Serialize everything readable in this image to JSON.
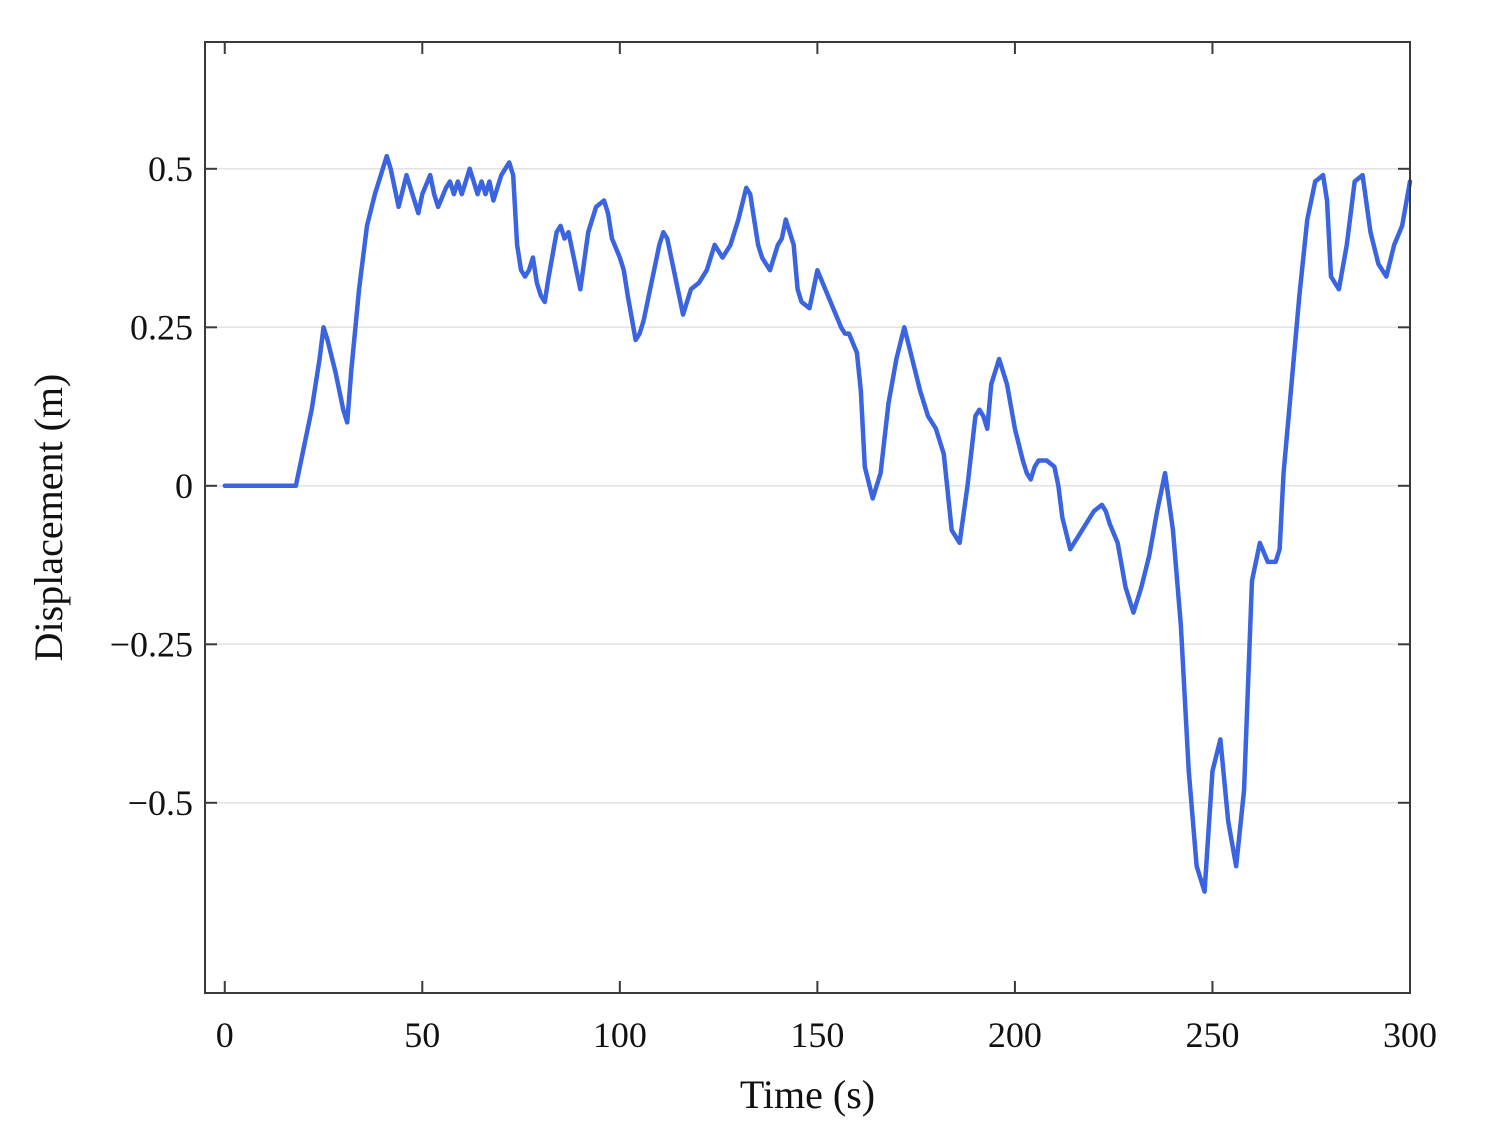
{
  "chart_data": {
    "type": "line",
    "xlabel": "Time (s)",
    "ylabel": "Displacement (m)",
    "xlim": [
      -5,
      300
    ],
    "ylim": [
      -0.8,
      0.7
    ],
    "xticks": [
      0,
      50,
      100,
      150,
      200,
      250,
      300
    ],
    "yticks": [
      -0.5,
      -0.25,
      0,
      0.25,
      0.5
    ],
    "xtick_labels": [
      "0",
      "50",
      "100",
      "150",
      "200",
      "250",
      "300"
    ],
    "ytick_labels": [
      "−0.5",
      "−0.25",
      "0",
      "0.25",
      "0.5"
    ],
    "grid": "horizontal",
    "legend": "none",
    "colors": {
      "line": "#3a64e0"
    },
    "series": [
      {
        "x": [
          0,
          18,
          20,
          22,
          24,
          25,
          26,
          28,
          30,
          31,
          32,
          34,
          36,
          38,
          40,
          41,
          42,
          43,
          44,
          46,
          48,
          49,
          50,
          52,
          53,
          54,
          56,
          57,
          58,
          59,
          60,
          62,
          63,
          64,
          65,
          66,
          67,
          68,
          69,
          70,
          72,
          73,
          74,
          75,
          76,
          77,
          78,
          79,
          80,
          81,
          82,
          84,
          85,
          86,
          87,
          88,
          90,
          92,
          94,
          96,
          97,
          98,
          100,
          101,
          102,
          104,
          105,
          106,
          108,
          110,
          111,
          112,
          114,
          116,
          118,
          120,
          122,
          124,
          126,
          128,
          130,
          132,
          133,
          134,
          135,
          136,
          138,
          140,
          141,
          142,
          144,
          145,
          146,
          148,
          149,
          150,
          152,
          154,
          156,
          157,
          158,
          160,
          161,
          162,
          164,
          166,
          168,
          170,
          172,
          174,
          176,
          178,
          180,
          182,
          184,
          186,
          188,
          190,
          191,
          192,
          193,
          194,
          196,
          198,
          200,
          202,
          203,
          204,
          205,
          206,
          208,
          210,
          211,
          212,
          214,
          216,
          218,
          220,
          222,
          223,
          224,
          226,
          228,
          230,
          232,
          234,
          236,
          238,
          240,
          242,
          244,
          246,
          248,
          250,
          252,
          254,
          256,
          258,
          260,
          262,
          264,
          266,
          267,
          268,
          270,
          272,
          274,
          276,
          278,
          279,
          280,
          282,
          284,
          286,
          288,
          290,
          292,
          294,
          296,
          298,
          300
        ],
        "y": [
          0,
          0,
          0.06,
          0.12,
          0.2,
          0.25,
          0.23,
          0.18,
          0.12,
          0.1,
          0.18,
          0.31,
          0.41,
          0.46,
          0.5,
          0.52,
          0.5,
          0.47,
          0.44,
          0.49,
          0.45,
          0.43,
          0.46,
          0.49,
          0.46,
          0.44,
          0.47,
          0.48,
          0.46,
          0.48,
          0.46,
          0.5,
          0.48,
          0.46,
          0.48,
          0.46,
          0.48,
          0.45,
          0.47,
          0.49,
          0.51,
          0.49,
          0.38,
          0.34,
          0.33,
          0.34,
          0.36,
          0.32,
          0.3,
          0.29,
          0.33,
          0.4,
          0.41,
          0.39,
          0.4,
          0.37,
          0.31,
          0.4,
          0.44,
          0.45,
          0.43,
          0.39,
          0.36,
          0.34,
          0.3,
          0.23,
          0.24,
          0.26,
          0.32,
          0.38,
          0.4,
          0.39,
          0.33,
          0.27,
          0.31,
          0.32,
          0.34,
          0.38,
          0.36,
          0.38,
          0.42,
          0.47,
          0.46,
          0.42,
          0.38,
          0.36,
          0.34,
          0.38,
          0.39,
          0.42,
          0.38,
          0.31,
          0.29,
          0.28,
          0.31,
          0.34,
          0.31,
          0.28,
          0.25,
          0.24,
          0.24,
          0.21,
          0.15,
          0.03,
          -0.02,
          0.02,
          0.13,
          0.2,
          0.25,
          0.2,
          0.15,
          0.11,
          0.09,
          0.05,
          -0.07,
          -0.09,
          0.0,
          0.11,
          0.12,
          0.11,
          0.09,
          0.16,
          0.2,
          0.16,
          0.09,
          0.04,
          0.02,
          0.01,
          0.03,
          0.04,
          0.04,
          0.03,
          0.0,
          -0.05,
          -0.1,
          -0.08,
          -0.06,
          -0.04,
          -0.03,
          -0.04,
          -0.06,
          -0.09,
          -0.16,
          -0.2,
          -0.16,
          -0.11,
          -0.04,
          0.02,
          -0.07,
          -0.22,
          -0.45,
          -0.6,
          -0.64,
          -0.45,
          -0.4,
          -0.53,
          -0.6,
          -0.48,
          -0.15,
          -0.09,
          -0.12,
          -0.12,
          -0.1,
          0.02,
          0.16,
          0.3,
          0.42,
          0.48,
          0.49,
          0.45,
          0.33,
          0.31,
          0.38,
          0.48,
          0.49,
          0.4,
          0.35,
          0.33,
          0.38,
          0.41,
          0.48
        ]
      }
    ]
  }
}
